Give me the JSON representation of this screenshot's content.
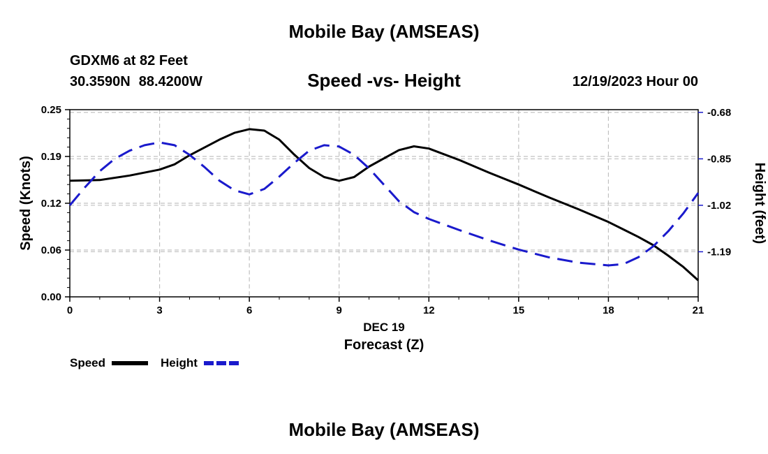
{
  "header": {
    "main_title": "Mobile Bay (AMSEAS)",
    "station": "GDXM6 at 82 Feet",
    "lat": "30.3590N",
    "lon": "88.4200W",
    "chart_title": "Speed -vs- Height",
    "date": "12/19/2023 Hour 00"
  },
  "footer": {
    "title": "Mobile Bay (AMSEAS)"
  },
  "colors": {
    "speed": "#000000",
    "height": "#1a1acc",
    "grid": "#c0c0c0"
  },
  "chart_data": {
    "type": "line",
    "title": "Speed -vs- Height",
    "xlabel": "Forecast (Z)",
    "x_date_label": "DEC 19",
    "ylabel": "Speed (Knots)",
    "y2label": "Height (feet)",
    "xlim": [
      0,
      21
    ],
    "ylim": [
      0,
      0.25
    ],
    "y2lim": [
      -1.355,
      -0.67
    ],
    "x_ticks": [
      0,
      3,
      6,
      9,
      12,
      15,
      18,
      21
    ],
    "x_tick_labels": [
      "0",
      "3",
      "6",
      "9",
      "12",
      "15",
      "18",
      "21"
    ],
    "y_ticks": [
      0,
      0.0625,
      0.125,
      0.1875,
      0.25
    ],
    "y_tick_labels": [
      "0.00",
      "0.06",
      "0.12",
      "0.19",
      "0.25"
    ],
    "y2_ticks": [
      -0.68,
      -0.85,
      -1.02,
      -1.19
    ],
    "y2_tick_labels": [
      "-0.68",
      "-0.85",
      "-1.02",
      "-1.19"
    ],
    "grid": true,
    "legend": {
      "placement": "bottom-left",
      "entries": [
        "Speed",
        "Height"
      ]
    },
    "series": [
      {
        "name": "Speed",
        "axis": "left",
        "style": "solid",
        "x": [
          0,
          1,
          2,
          3,
          3.5,
          4,
          5,
          5.5,
          6,
          6.5,
          7,
          7.5,
          8,
          8.5,
          9,
          9.5,
          10,
          11,
          11.5,
          12,
          13,
          14,
          15,
          16,
          17,
          18,
          18.5,
          19,
          19.5,
          20,
          20.5,
          21
        ],
        "values": [
          0.155,
          0.156,
          0.162,
          0.17,
          0.177,
          0.189,
          0.21,
          0.219,
          0.224,
          0.222,
          0.21,
          0.19,
          0.172,
          0.16,
          0.155,
          0.16,
          0.174,
          0.196,
          0.201,
          0.198,
          0.183,
          0.166,
          0.15,
          0.133,
          0.117,
          0.1,
          0.09,
          0.08,
          0.069,
          0.055,
          0.04,
          0.022
        ]
      },
      {
        "name": "Height",
        "axis": "right",
        "style": "dashed",
        "x": [
          0,
          0.5,
          1,
          1.5,
          2,
          2.5,
          3,
          3.5,
          4,
          4.5,
          5,
          5.5,
          6,
          6.5,
          7,
          7.5,
          8,
          8.5,
          9,
          9.5,
          10,
          10.5,
          11,
          11.5,
          12,
          13,
          14,
          15,
          16,
          17,
          18,
          18.5,
          19,
          19.5,
          20,
          20.5,
          21
        ],
        "values": [
          -1.02,
          -0.955,
          -0.895,
          -0.85,
          -0.82,
          -0.8,
          -0.79,
          -0.8,
          -0.835,
          -0.88,
          -0.93,
          -0.965,
          -0.98,
          -0.96,
          -0.915,
          -0.865,
          -0.82,
          -0.8,
          -0.805,
          -0.835,
          -0.885,
          -0.945,
          -1.005,
          -1.045,
          -1.07,
          -1.11,
          -1.148,
          -1.182,
          -1.21,
          -1.23,
          -1.24,
          -1.235,
          -1.21,
          -1.17,
          -1.115,
          -1.05,
          -0.975
        ]
      }
    ]
  }
}
